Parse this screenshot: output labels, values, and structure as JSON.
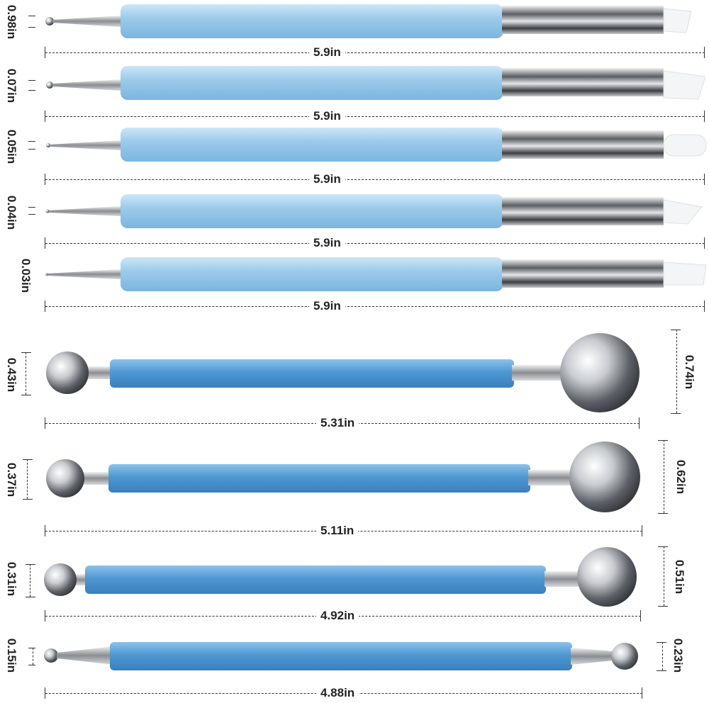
{
  "nail_tools": [
    {
      "tip": "0.98in",
      "length": "5.9in"
    },
    {
      "tip": "0.07in",
      "length": "5.9in"
    },
    {
      "tip": "0.05in",
      "length": "5.9in"
    },
    {
      "tip": "0.04in",
      "length": "5.9in"
    },
    {
      "tip": "0.03in",
      "length": "5.9in"
    }
  ],
  "ball_tools": [
    {
      "small_ball": "0.43in",
      "large_ball": "0.74in",
      "length": "5.31in"
    },
    {
      "small_ball": "0.37in",
      "large_ball": "0.62in",
      "length": "5.11in"
    },
    {
      "small_ball": "0.31in",
      "large_ball": "0.51in",
      "length": "4.92in"
    },
    {
      "small_ball": "0.15in",
      "large_ball": "0.23in",
      "length": "4.88in"
    }
  ],
  "colors": {
    "handle": "#a9d3ee",
    "handle_dark": "#4f95cf",
    "metal": "#b9bcc0"
  }
}
